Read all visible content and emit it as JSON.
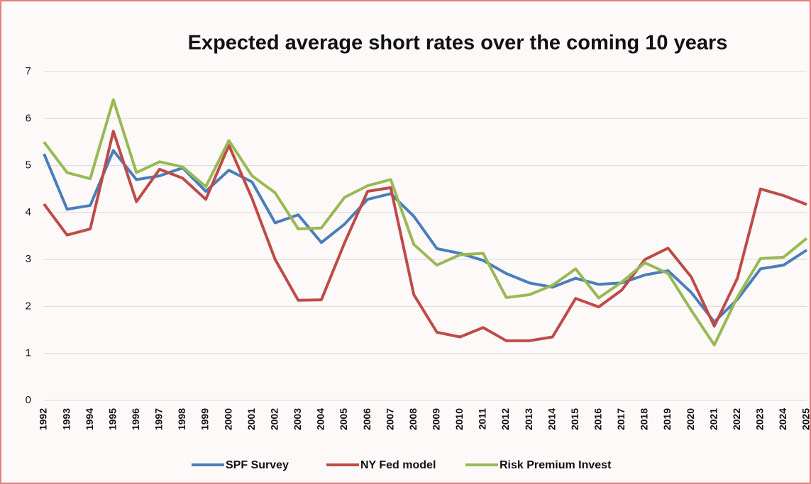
{
  "chart_data": {
    "type": "line",
    "title": "Expected average short rates over the coming 10 years",
    "categories": [
      "1992",
      "1993",
      "1994",
      "1995",
      "1996",
      "1997",
      "1998",
      "1999",
      "2000",
      "2001",
      "2002",
      "2003",
      "2004",
      "2005",
      "2006",
      "2007",
      "2008",
      "2009",
      "2010",
      "2011",
      "2012",
      "2013",
      "2014",
      "2015",
      "2016",
      "2017",
      "2018",
      "2019",
      "2020",
      "2021",
      "2022",
      "2023",
      "2024",
      "2025"
    ],
    "series": [
      {
        "name": "SPF Survey",
        "color": "#4a7ebb",
        "values": [
          5.25,
          4.07,
          4.15,
          5.32,
          4.7,
          4.78,
          4.95,
          4.45,
          4.9,
          4.65,
          3.78,
          3.95,
          3.36,
          3.75,
          4.28,
          4.4,
          3.92,
          3.23,
          3.13,
          2.98,
          2.7,
          2.5,
          2.41,
          2.6,
          2.47,
          2.5,
          2.67,
          2.76,
          2.3,
          1.67,
          2.15,
          2.8,
          2.88,
          3.2
        ]
      },
      {
        "name": "NY Fed model",
        "color": "#be4b48",
        "values": [
          4.18,
          3.52,
          3.65,
          5.73,
          4.23,
          4.92,
          4.73,
          4.28,
          5.43,
          4.3,
          3.0,
          2.13,
          2.14,
          3.35,
          4.45,
          4.53,
          2.25,
          1.45,
          1.35,
          1.55,
          1.27,
          1.27,
          1.35,
          2.17,
          1.99,
          2.35,
          3.0,
          3.24,
          2.63,
          1.58,
          2.6,
          4.5,
          4.36,
          4.17
        ]
      },
      {
        "name": "Risk Premium Invest",
        "color": "#98b954",
        "values": [
          5.5,
          4.85,
          4.72,
          6.4,
          4.85,
          5.08,
          4.97,
          4.55,
          5.53,
          4.78,
          4.42,
          3.65,
          3.67,
          4.32,
          4.57,
          4.7,
          3.32,
          2.88,
          3.1,
          3.13,
          2.19,
          2.25,
          2.45,
          2.8,
          2.18,
          2.52,
          2.93,
          2.7,
          1.92,
          1.18,
          2.2,
          3.02,
          3.05,
          3.45
        ]
      }
    ],
    "ylim": [
      0,
      7
    ],
    "yticks": [
      0,
      1,
      2,
      3,
      4,
      5,
      6,
      7
    ],
    "grid": true,
    "legend": "bottom"
  }
}
